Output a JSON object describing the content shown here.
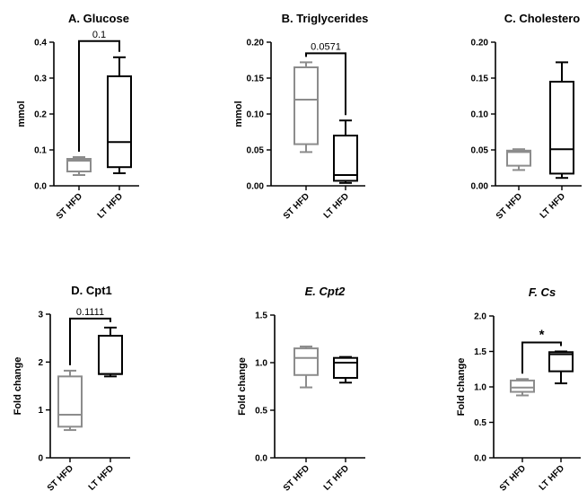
{
  "chart_data": [
    {
      "type": "box",
      "title": "A. Glucose",
      "title_italic": false,
      "ylabel": "mmol",
      "ylim": [
        0,
        0.4
      ],
      "yticks": [
        "0.0",
        "0.1",
        "0.2",
        "0.3",
        "0.4"
      ],
      "categories": [
        "ST HFD",
        "LT HFD"
      ],
      "series": [
        {
          "whisker_low": 0.03,
          "q1": 0.04,
          "median": 0.07,
          "q3": 0.075,
          "whisker_high": 0.08,
          "color": "#8c8c8c"
        },
        {
          "whisker_low": 0.035,
          "q1": 0.052,
          "median": 0.122,
          "q3": 0.305,
          "whisker_high": 0.358,
          "color": "#000000"
        }
      ],
      "annotation": {
        "text": "0.1",
        "bracket": true
      }
    },
    {
      "type": "box",
      "title": "B. Triglycerides",
      "title_italic": false,
      "ylabel": "mmol",
      "ylim": [
        0,
        0.2
      ],
      "yticks": [
        "0.00",
        "0.05",
        "0.10",
        "0.15",
        "0.20"
      ],
      "categories": [
        "ST HFD",
        "LT HFD"
      ],
      "series": [
        {
          "whisker_low": 0.047,
          "q1": 0.058,
          "median": 0.12,
          "q3": 0.165,
          "whisker_high": 0.172,
          "color": "#8c8c8c"
        },
        {
          "whisker_low": 0.004,
          "q1": 0.007,
          "median": 0.015,
          "q3": 0.07,
          "whisker_high": 0.091,
          "color": "#000000"
        }
      ],
      "annotation": {
        "text": "0.0571",
        "bracket": true
      }
    },
    {
      "type": "box",
      "title": "C. Cholestero",
      "title_italic": false,
      "ylabel": "",
      "ylim": [
        0,
        0.2
      ],
      "yticks": [
        "0.00",
        "0.05",
        "0.10",
        "0.15",
        "0.20"
      ],
      "categories": [
        "ST HFD",
        "LT HFD"
      ],
      "series": [
        {
          "whisker_low": 0.022,
          "q1": 0.028,
          "median": 0.047,
          "q3": 0.049,
          "whisker_high": 0.051,
          "color": "#8c8c8c"
        },
        {
          "whisker_low": 0.011,
          "q1": 0.017,
          "median": 0.051,
          "q3": 0.145,
          "whisker_high": 0.172,
          "color": "#000000"
        }
      ],
      "annotation": null
    },
    {
      "type": "box",
      "title": "D. Cpt1",
      "title_italic": false,
      "ylabel": "Fold change",
      "ylim": [
        0,
        3
      ],
      "yticks": [
        "0",
        "1",
        "2",
        "3"
      ],
      "categories": [
        "ST HFD",
        "LT HFD"
      ],
      "series": [
        {
          "whisker_low": 0.58,
          "q1": 0.65,
          "median": 0.9,
          "q3": 1.7,
          "whisker_high": 1.82,
          "color": "#8c8c8c"
        },
        {
          "whisker_low": 1.7,
          "q1": 1.75,
          "median": 1.75,
          "q3": 2.55,
          "whisker_high": 2.72,
          "color": "#000000"
        }
      ],
      "annotation": {
        "text": "0.1111",
        "bracket": true
      }
    },
    {
      "type": "box",
      "title": "E. Cpt2",
      "title_italic": true,
      "ylabel": "Fold change",
      "ylim": [
        0,
        1.5
      ],
      "yticks": [
        "0.0",
        "0.5",
        "1.0",
        "1.5"
      ],
      "categories": [
        "ST HFD",
        "LT HFD"
      ],
      "series": [
        {
          "whisker_low": 0.74,
          "q1": 0.87,
          "median": 1.05,
          "q3": 1.15,
          "whisker_high": 1.17,
          "color": "#8c8c8c"
        },
        {
          "whisker_low": 0.79,
          "q1": 0.84,
          "median": 1.0,
          "q3": 1.05,
          "whisker_high": 1.06,
          "color": "#000000"
        }
      ],
      "annotation": null
    },
    {
      "type": "box",
      "title": "F. Cs",
      "title_italic": true,
      "ylabel": "Fold change",
      "ylim": [
        0,
        2.0
      ],
      "yticks": [
        "0.0",
        "0.5",
        "1.0",
        "1.5",
        "2.0"
      ],
      "categories": [
        "ST HFD",
        "LT HFD"
      ],
      "series": [
        {
          "whisker_low": 0.88,
          "q1": 0.93,
          "median": 0.99,
          "q3": 1.09,
          "whisker_high": 1.11,
          "color": "#8c8c8c"
        },
        {
          "whisker_low": 1.05,
          "q1": 1.22,
          "median": 1.46,
          "q3": 1.49,
          "whisker_high": 1.5,
          "color": "#000000"
        }
      ],
      "annotation": {
        "text": "*",
        "bracket": true
      }
    }
  ]
}
